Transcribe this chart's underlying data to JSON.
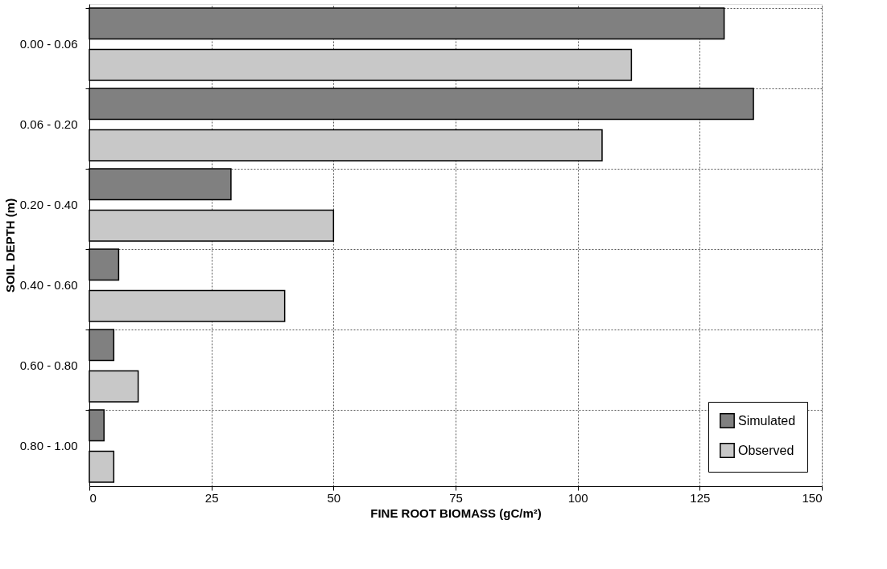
{
  "chart_data": {
    "type": "bar",
    "orientation": "horizontal",
    "xlabel": "FINE ROOT BIOMASS (gC/m²)",
    "ylabel": "SOIL DEPTH (m)",
    "categories": [
      "0.00 - 0.06",
      "0.06 - 0.20",
      "0.20 - 0.40",
      "0.40 - 0.60",
      "0.60 - 0.80",
      "0.80 - 1.00"
    ],
    "series": [
      {
        "name": "Simulated",
        "color": "#808080",
        "values": [
          130,
          136,
          29,
          6,
          5,
          3
        ]
      },
      {
        "name": "Observed",
        "color": "#c8c8c8",
        "values": [
          111,
          105,
          50,
          40,
          10,
          5
        ]
      }
    ],
    "xlim": [
      0,
      150
    ],
    "xticks": [
      0,
      25,
      50,
      75,
      100,
      125,
      150
    ],
    "grid": true,
    "legend": "bottom right"
  }
}
